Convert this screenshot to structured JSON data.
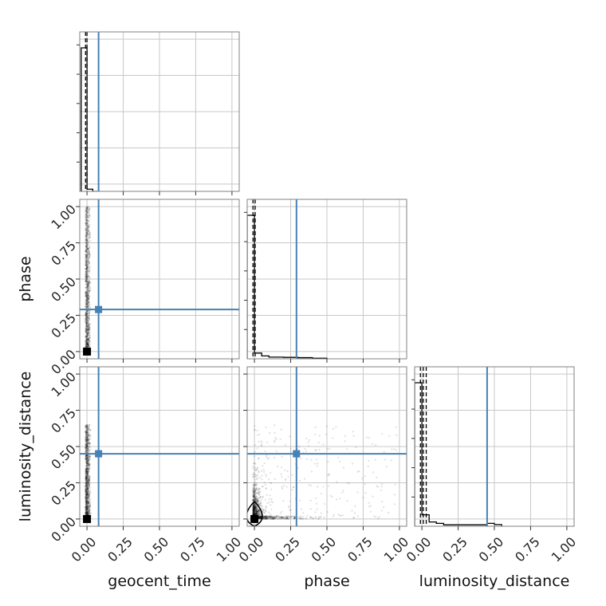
{
  "chart_data": {
    "type": "corner",
    "parameters": [
      "geocent_time",
      "phase",
      "luminosity_distance"
    ],
    "axis_labels": {
      "x": [
        "geocent_time",
        "phase",
        "luminosity_distance"
      ],
      "y": [
        "phase",
        "luminosity_distance"
      ]
    },
    "tick_values": [
      0.0,
      0.25,
      0.5,
      0.75,
      1.0
    ],
    "tick_labels": [
      "0.00",
      "0.25",
      "0.50",
      "0.75",
      "1.00"
    ],
    "range": [
      -0.05,
      1.05
    ],
    "grid": true,
    "truths": {
      "geocent_time": 0.08,
      "phase": 0.29,
      "luminosity_distance": 0.45
    },
    "truth_color": "#4682b4",
    "contour_color": "#000000",
    "histograms": {
      "geocent_time": {
        "bin_edges": [
          -0.04,
          0.0,
          0.04,
          0.08
        ],
        "counts": [
          0.98,
          0.015,
          0.0
        ],
        "quantiles": [
          -0.01,
          0.0
        ]
      },
      "phase": {
        "bin_edges": [
          -0.05,
          0.0,
          0.05,
          0.1,
          0.2,
          0.3,
          0.4,
          0.5
        ],
        "counts": [
          1.0,
          0.04,
          0.02,
          0.012,
          0.01,
          0.008,
          0.004
        ],
        "quantiles": [
          -0.01,
          0.005
        ]
      },
      "luminosity_distance": {
        "bin_edges": [
          -0.05,
          0.0,
          0.05,
          0.1,
          0.15,
          0.2,
          0.25,
          0.3,
          0.35,
          0.45,
          0.5,
          0.55
        ],
        "counts": [
          1.0,
          0.08,
          0.03,
          0.02,
          0.01,
          0.01,
          0.01,
          0.01,
          0.01,
          0.02,
          0.012
        ],
        "quantiles": [
          -0.01,
          0.01,
          0.03
        ]
      }
    },
    "scatter_pairs": [
      {
        "x": "geocent_time",
        "y": "phase",
        "core": [
          0.0,
          0.0
        ],
        "x_spread": [
          0.0,
          0.04
        ],
        "y_extent": [
          0.0,
          1.0
        ]
      },
      {
        "x": "geocent_time",
        "y": "luminosity_distance",
        "core": [
          0.0,
          0.0
        ],
        "x_spread": [
          0.0,
          0.04
        ],
        "y_extent": [
          0.0,
          0.65
        ]
      },
      {
        "x": "phase",
        "y": "luminosity_distance",
        "core": [
          0.0,
          0.0
        ],
        "x_extent": [
          0.0,
          1.0
        ],
        "y_extent": [
          0.0,
          0.65
        ]
      }
    ]
  }
}
